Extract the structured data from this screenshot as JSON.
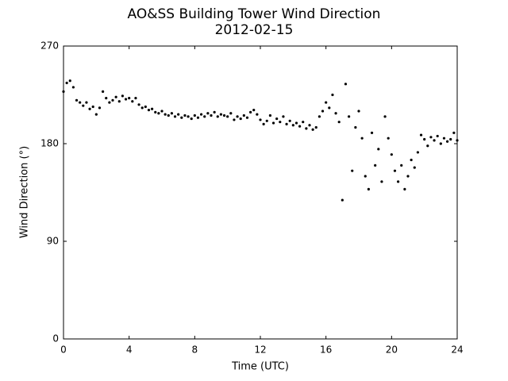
{
  "chart_data": {
    "type": "scatter",
    "title": "AO&SS Building Tower Wind Direction",
    "subtitle": "2012-02-15",
    "x_label": "Time (UTC)",
    "y_label": "Wind Direction (°)",
    "color": "#000000",
    "xlim": [
      0,
      24
    ],
    "xticks": [
      0,
      4,
      8,
      12,
      16,
      20,
      24
    ],
    "ylim": [
      0,
      270
    ],
    "yticks": [
      0,
      90,
      180,
      270
    ],
    "x": [
      0,
      0.2,
      0.4,
      0.6,
      0.8,
      1,
      1.2,
      1.4,
      1.6,
      1.8,
      2,
      2.2,
      2.4,
      2.6,
      2.8,
      3,
      3.2,
      3.4,
      3.6,
      3.8,
      4,
      4.2,
      4.4,
      4.6,
      4.8,
      5,
      5.2,
      5.4,
      5.6,
      5.8,
      6,
      6.2,
      6.4,
      6.6,
      6.8,
      7,
      7.2,
      7.4,
      7.6,
      7.8,
      8,
      8.2,
      8.4,
      8.6,
      8.8,
      9,
      9.2,
      9.4,
      9.6,
      9.8,
      10,
      10.2,
      10.4,
      10.6,
      10.8,
      11,
      11.2,
      11.4,
      11.6,
      11.8,
      12,
      12.2,
      12.4,
      12.6,
      12.8,
      13,
      13.2,
      13.4,
      13.6,
      13.8,
      14,
      14.2,
      14.4,
      14.6,
      14.8,
      15,
      15.2,
      15.4,
      15.6,
      15.8,
      16,
      16.2,
      16.4,
      16.6,
      16.8,
      17,
      17.2,
      17.4,
      17.6,
      17.8,
      18,
      18.2,
      18.4,
      18.6,
      18.8,
      19,
      19.2,
      19.4,
      19.6,
      19.8,
      20,
      20.2,
      20.4,
      20.6,
      20.8,
      21,
      21.2,
      21.4,
      21.6,
      21.8,
      22,
      22.2,
      22.4,
      22.6,
      22.8,
      23,
      23.2,
      23.4,
      23.6,
      23.8,
      24
    ],
    "values": [
      228,
      236,
      238,
      232,
      220,
      218,
      215,
      218,
      212,
      214,
      207,
      213,
      228,
      222,
      218,
      220,
      223,
      219,
      224,
      221,
      222,
      219,
      222,
      216,
      213,
      214,
      211,
      212,
      209,
      208,
      210,
      207,
      206,
      208,
      205,
      207,
      204,
      206,
      205,
      203,
      206,
      204,
      207,
      205,
      208,
      206,
      209,
      205,
      207,
      206,
      205,
      208,
      202,
      205,
      203,
      206,
      204,
      209,
      211,
      207,
      202,
      198,
      201,
      206,
      199,
      203,
      200,
      205,
      198,
      201,
      197,
      199,
      196,
      200,
      194,
      197,
      193,
      195,
      205,
      210,
      218,
      213,
      225,
      208,
      200,
      128,
      235,
      205,
      155,
      195,
      210,
      185,
      150,
      138,
      190,
      160,
      175,
      145,
      205,
      185,
      170,
      155,
      145,
      160,
      138,
      150,
      165,
      158,
      172,
      188,
      184,
      178,
      186,
      183,
      187,
      180,
      185,
      182,
      184,
      190,
      183
    ]
  }
}
